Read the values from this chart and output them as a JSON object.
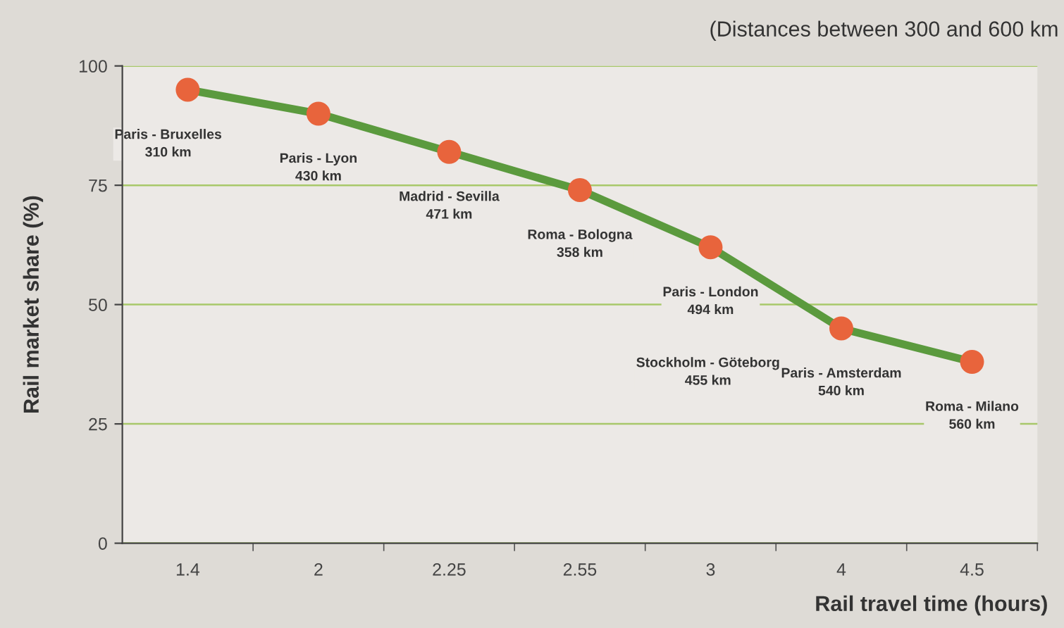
{
  "chart_data": {
    "type": "line",
    "subtitle": "(Distances between 300 and 600 km",
    "xlabel": "Rail travel time (hours)",
    "ylabel": "Rail market share (%)",
    "categories": [
      "1.4",
      "2",
      "2.25",
      "2.55",
      "3",
      "4",
      "4.5"
    ],
    "series": [
      {
        "color": "#5b9a3e",
        "colors": [
          "#e8643c",
          "#e8643c",
          "#e8643c",
          "#e8643c",
          "#e8643c",
          "#e8643c",
          "#e8643c"
        ],
        "values": [
          95,
          90,
          82,
          74,
          62,
          45,
          38
        ]
      }
    ],
    "marker": "circle",
    "line_style": "solid",
    "ylim": [
      0,
      100
    ],
    "yticks": [
      0,
      25,
      50,
      75,
      100
    ],
    "grid": "y",
    "legend": false,
    "annotations": [
      {
        "text": "Paris - Bruxelles\n310 km",
        "x": "1.4",
        "y": 95
      },
      {
        "text": "Paris - Lyon\n430 km",
        "x": "2",
        "y": 90
      },
      {
        "text": "Madrid - Sevilla\n471 km",
        "x": "2.25",
        "y": 82
      },
      {
        "text": "Roma - Bologna\n358 km",
        "x": "2.55",
        "y": 74
      },
      {
        "text": "Paris - London\n494 km",
        "x": "3",
        "y": 62
      },
      "Stockholm - Göteborg\n455 km",
      {
        "text": "Paris - Amsterdam\n540 km",
        "x": "4",
        "y": 45
      },
      {
        "text": "Roma - Milano\n560 km",
        "x": "4.5",
        "y": 38
      }
    ]
  }
}
